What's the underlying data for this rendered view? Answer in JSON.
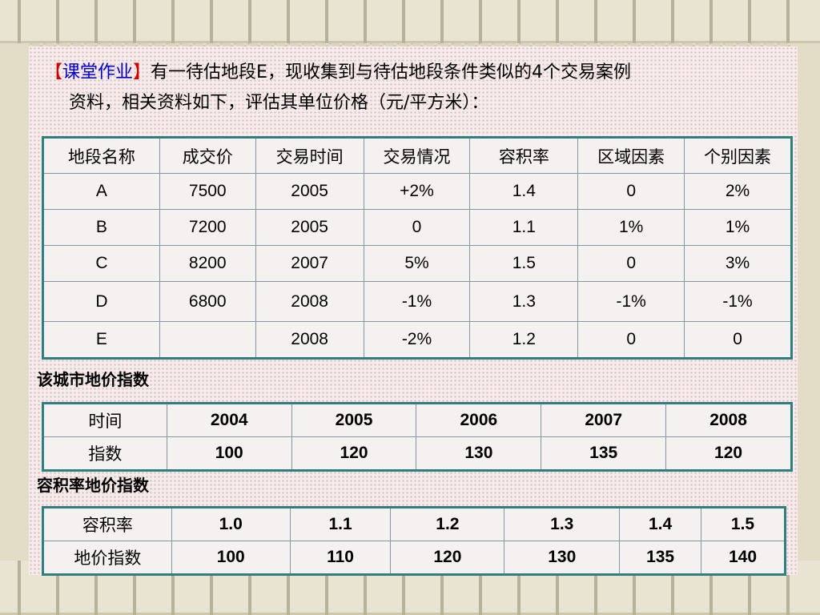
{
  "heading": {
    "bracket_open": "【",
    "tag": "课堂作业",
    "bracket_close": "】",
    "text_line1": "有一待估地段E，现收集到与待估地段条件类似的4个交易案例",
    "text_line2": "资料，相关资料如下，评估其单位价格（元/平方米）："
  },
  "cases_table": {
    "headers": [
      "地段名称",
      "成交价",
      "交易时间",
      "交易情况",
      "容积率",
      "区域因素",
      "个别因素"
    ],
    "rows": [
      [
        "A",
        "7500",
        "2005",
        "+2%",
        "1.4",
        "0",
        "2%"
      ],
      [
        "B",
        "7200",
        "2005",
        "0",
        "1.1",
        "1%",
        "1%"
      ],
      [
        "C",
        "8200",
        "2007",
        "5%",
        "1.5",
        "0",
        "3%"
      ],
      [
        "D",
        "6800",
        "2008",
        "-1%",
        "1.3",
        "-1%",
        "-1%"
      ],
      [
        "E",
        "",
        "2008",
        "-2%",
        "1.2",
        "0",
        "0"
      ]
    ]
  },
  "city_index": {
    "caption": "该城市地价指数",
    "row1_label": "时间",
    "row1": [
      "2004",
      "2005",
      "2006",
      "2007",
      "2008"
    ],
    "row2_label": "指数",
    "row2": [
      "100",
      "120",
      "130",
      "135",
      "120"
    ]
  },
  "far_index": {
    "caption": "容积率地价指数",
    "row1_label": "容积率",
    "row1": [
      "1.0",
      "1.1",
      "1.2",
      "1.3",
      "1.4",
      "1.5"
    ],
    "row2_label": "地价指数",
    "row2": [
      "100",
      "110",
      "120",
      "130",
      "135",
      "140"
    ]
  }
}
